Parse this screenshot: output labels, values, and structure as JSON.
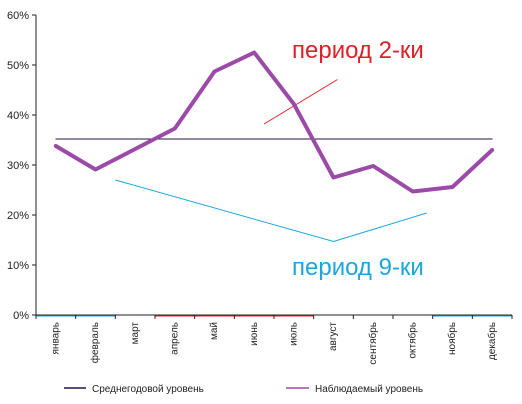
{
  "chart_data": {
    "type": "line",
    "categories": [
      "январь",
      "февраль",
      "март",
      "апрель",
      "май",
      "июнь",
      "июль",
      "август",
      "сентябрь",
      "октябрь",
      "ноябрь",
      "декабрь"
    ],
    "ylim": [
      0,
      60
    ],
    "yticks": [
      "0%",
      "10%",
      "20%",
      "30%",
      "40%",
      "50%",
      "60%"
    ],
    "y_unit": "%",
    "grid": false,
    "legend_position": "bottom",
    "series": [
      {
        "name": "Среднегодовой уровень",
        "color": "#24124a",
        "values": [
          35.2,
          35.2,
          35.2,
          35.2,
          35.2,
          35.2,
          35.2,
          35.2,
          35.2,
          35.2,
          35.2,
          35.2
        ]
      },
      {
        "name": "Наблюдаемый уровень",
        "color": "#9b4aa8",
        "values": [
          33.8,
          29.1,
          33.2,
          37.3,
          48.7,
          52.5,
          42.2,
          27.5,
          29.8,
          24.7,
          25.6,
          33.0
        ]
      }
    ],
    "annotations": [
      {
        "label": "период 2-ки",
        "color": "#e11f28",
        "span": [
          "апрель",
          "июль"
        ],
        "trend": [
          [
            5.75,
            38.2
          ],
          [
            7.6,
            47.1
          ]
        ]
      },
      {
        "label": "период 9-ки",
        "color": "#1ca6dc",
        "span": [
          "январь",
          "февраль"
        ],
        "trend": [
          [
            2.0,
            27.0
          ],
          [
            7.5,
            14.7
          ],
          [
            9.85,
            20.4
          ]
        ]
      },
      {
        "label": "",
        "color": "#1ca6dc",
        "span": [
          "ноябрь",
          "декабрь"
        ]
      }
    ]
  }
}
